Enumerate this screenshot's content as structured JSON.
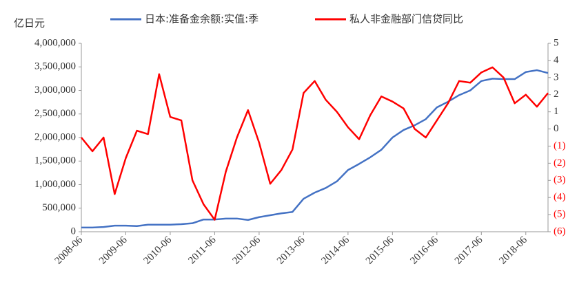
{
  "chart_data": {
    "type": "line",
    "unit_label": "亿日元",
    "categories": [
      "2008-06",
      null,
      null,
      null,
      "2009-06",
      null,
      null,
      null,
      "2010-06",
      null,
      null,
      null,
      "2011-06",
      null,
      null,
      null,
      "2012-06",
      null,
      null,
      null,
      "2013-06",
      null,
      null,
      null,
      "2014-06",
      null,
      null,
      null,
      "2015-06",
      null,
      null,
      null,
      "2016-06",
      null,
      null,
      null,
      "2017-06",
      null,
      null,
      null,
      "2018-06",
      null,
      null
    ],
    "series": [
      {
        "name": "日本:准备金余额:实值:季",
        "color": "#4472c4",
        "axis": "y",
        "values": [
          90000,
          90000,
          100000,
          130000,
          130000,
          120000,
          150000,
          150000,
          150000,
          160000,
          180000,
          260000,
          260000,
          280000,
          280000,
          250000,
          310000,
          350000,
          390000,
          420000,
          700000,
          830000,
          930000,
          1070000,
          1310000,
          1440000,
          1580000,
          1740000,
          2000000,
          2160000,
          2260000,
          2390000,
          2640000,
          2760000,
          2900000,
          3000000,
          3200000,
          3250000,
          3240000,
          3240000,
          3390000,
          3430000,
          3370000
        ]
      },
      {
        "name": "私人非金融部门信贷同比",
        "color": "#ff0000",
        "axis": "y2",
        "values": [
          -0.5,
          -1.3,
          -0.5,
          -3.8,
          -1.7,
          -0.1,
          -0.3,
          3.2,
          0.7,
          0.5,
          -3.0,
          -4.4,
          -5.3,
          -2.5,
          -0.5,
          1.1,
          -0.8,
          -3.2,
          -2.4,
          -1.2,
          2.1,
          2.8,
          1.7,
          1.0,
          0.1,
          -0.6,
          0.8,
          1.9,
          1.6,
          1.2,
          0.0,
          -0.5,
          0.5,
          1.5,
          2.8,
          2.7,
          3.3,
          3.6,
          3.0,
          1.5,
          2.0,
          1.3,
          2.1
        ]
      }
    ],
    "ylim": [
      0,
      4000000
    ],
    "yticks": [
      0,
      {
        "value": 500000,
        "label": "500,000"
      },
      {
        "value": 1000000,
        "label": "1,000,000"
      },
      {
        "value": 1500000,
        "label": "1,500,000"
      },
      {
        "value": 2000000,
        "label": "2,000,000"
      },
      {
        "value": 2500000,
        "label": "2,500,000"
      },
      {
        "value": 3000000,
        "label": "3,000,000"
      },
      {
        "value": 3500000,
        "label": "3,500,000"
      },
      {
        "value": 4000000,
        "label": "4,000,000"
      }
    ],
    "y2lim": [
      -6,
      5
    ],
    "y2ticks": [
      5,
      4,
      3,
      2,
      1,
      0,
      {
        "value": -1,
        "label": "(1)"
      },
      {
        "value": -2,
        "label": "(2)"
      },
      {
        "value": -3,
        "label": "(3)"
      },
      {
        "value": -4,
        "label": "(4)"
      },
      {
        "value": -5,
        "label": "(5)"
      },
      {
        "value": -6,
        "label": "(6)"
      }
    ],
    "y2_negative_label_color": "#ff0000",
    "grid": false,
    "legend": "top"
  }
}
